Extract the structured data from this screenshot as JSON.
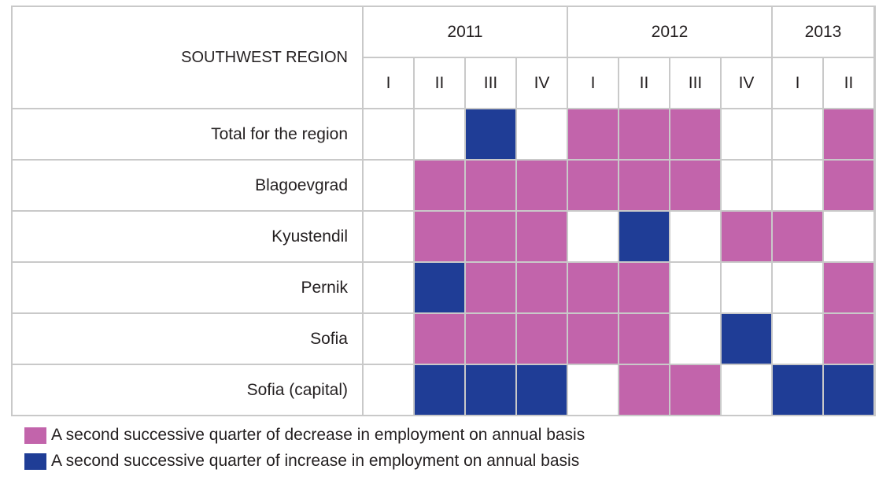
{
  "chart_data": {
    "type": "table",
    "header_label": "SOUTHWEST REGION",
    "years": [
      {
        "label": "2011",
        "span": 4
      },
      {
        "label": "2012",
        "span": 4
      },
      {
        "label": "2013",
        "span": 2
      }
    ],
    "quarters": [
      "I",
      "II",
      "III",
      "IV",
      "I",
      "II",
      "III",
      "IV",
      "I",
      "II"
    ],
    "rows": [
      {
        "label": "Total for the region",
        "status": [
          "",
          "",
          "I",
          "",
          "D",
          "D",
          "D",
          "",
          "",
          "D"
        ]
      },
      {
        "label": "Blagoevgrad",
        "status": [
          "",
          "D",
          "D",
          "D",
          "D",
          "D",
          "D",
          "",
          "",
          "D"
        ]
      },
      {
        "label": "Kyustendil",
        "status": [
          "",
          "D",
          "D",
          "D",
          "",
          "I",
          "",
          "D",
          "D",
          ""
        ]
      },
      {
        "label": "Pernik",
        "status": [
          "",
          "I",
          "D",
          "D",
          "D",
          "D",
          "",
          "",
          "",
          "D"
        ]
      },
      {
        "label": "Sofia",
        "status": [
          "",
          "D",
          "D",
          "D",
          "D",
          "D",
          "",
          "I",
          "",
          "D"
        ]
      },
      {
        "label": "Sofia (capital)",
        "status": [
          "",
          "I",
          "I",
          "I",
          "",
          "D",
          "D",
          "",
          "I",
          "I"
        ]
      }
    ],
    "legend": [
      {
        "key": "D",
        "label": "A second successive quarter of decrease in employment on annual basis",
        "color": "#c264ab"
      },
      {
        "key": "I",
        "label": "A second successive quarter of increase in employment on annual basis",
        "color": "#1f3d96"
      }
    ]
  }
}
